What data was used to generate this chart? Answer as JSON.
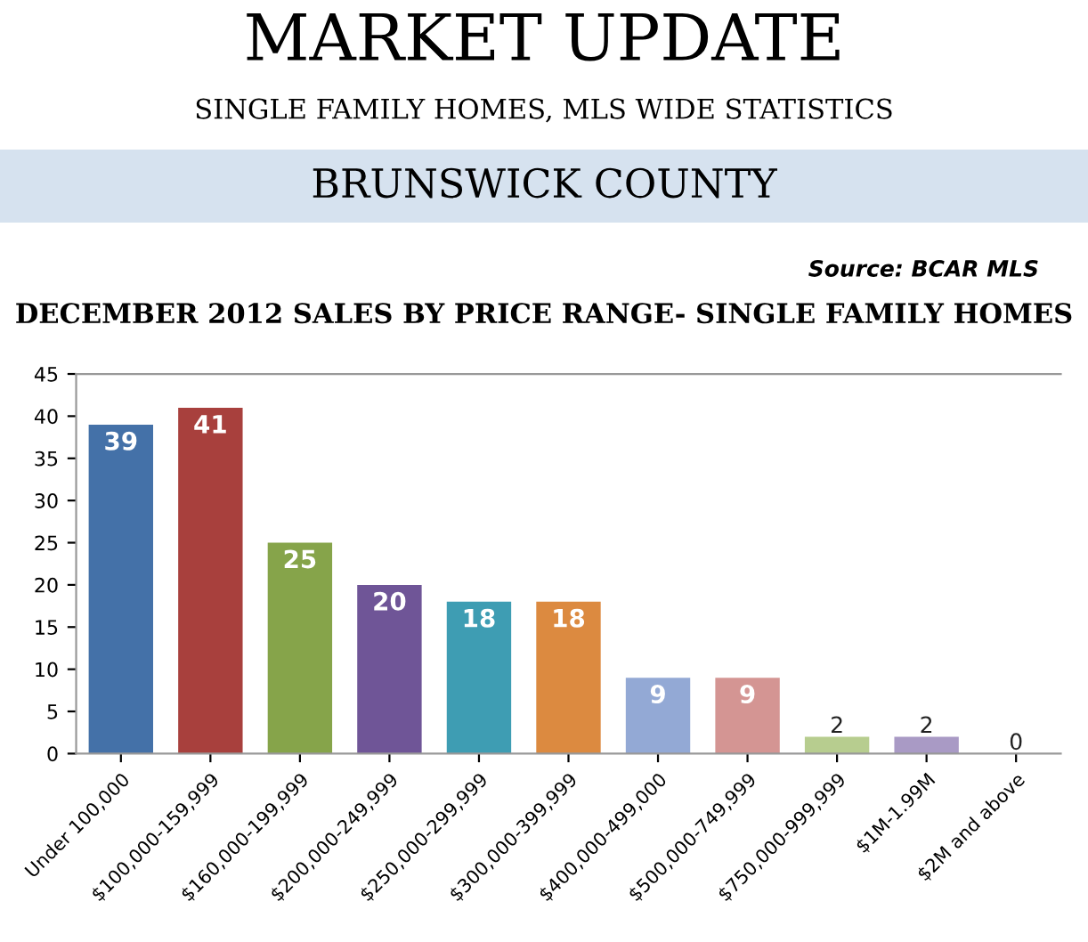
{
  "chart_data": {
    "type": "bar",
    "title": "MARKET UPDATE",
    "subtitle": "SINGLE FAMILY HOMES, MLS WIDE STATISTICS",
    "annotations": [
      "BRUNSWICK COUNTY",
      "Source: BCAR MLS",
      "DECEMBER 2012 SALES BY PRICE RANGE- SINGLE FAMILY HOMES"
    ],
    "categories": [
      "Under 100,000",
      "$100,000-159,999",
      "$160,000-199,999",
      "$200,000-249,999",
      "$250,000-299,999",
      "$300,000-399,999",
      "$400,000-499,000",
      "$500,000-749,999",
      "$750,000-999,999",
      "$1M-1.99M",
      "$2M and above"
    ],
    "values": [
      39,
      41,
      25,
      20,
      18,
      18,
      9,
      9,
      2,
      2,
      0
    ],
    "colors": [
      "#4471a8",
      "#a8403d",
      "#86a44a",
      "#6f5597",
      "#3e9db3",
      "#dc8a40",
      "#93a9d5",
      "#d49593",
      "#b7cd8f",
      "#a99ac5",
      "#cccccc"
    ],
    "ylim": [
      0,
      45
    ],
    "yticks": [
      0,
      5,
      10,
      15,
      20,
      25,
      30,
      35,
      40,
      45
    ],
    "data_labels": true,
    "grid": false
  }
}
